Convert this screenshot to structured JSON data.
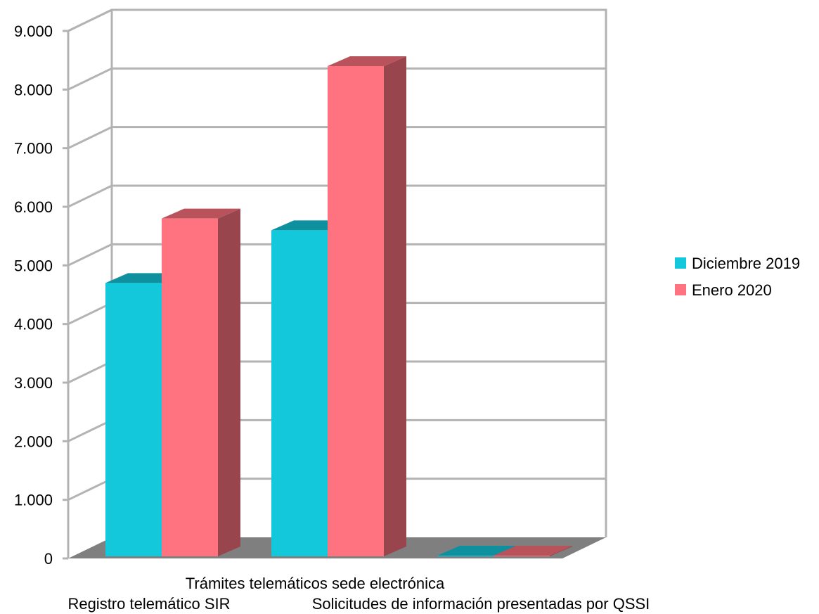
{
  "chart_data": {
    "type": "bar",
    "style": "3d-clustered",
    "categories": [
      "Registro telemático SIR",
      "Trámites telemáticos sede electrónica",
      "Solicitudes de información presentadas por QSSI"
    ],
    "series": [
      {
        "name": "Diciembre 2019",
        "values": [
          4700,
          5600,
          5
        ],
        "color": "#14C8DC"
      },
      {
        "name": "Enero 2020",
        "values": [
          5800,
          8400,
          5
        ],
        "color": "#FF7380"
      }
    ],
    "yticks": [
      "0",
      "1.000",
      "2.000",
      "3.000",
      "4.000",
      "5.000",
      "6.000",
      "7.000",
      "8.000",
      "9.000"
    ],
    "ylim": [
      0,
      9000
    ],
    "grid": true,
    "legend_position": "right"
  }
}
